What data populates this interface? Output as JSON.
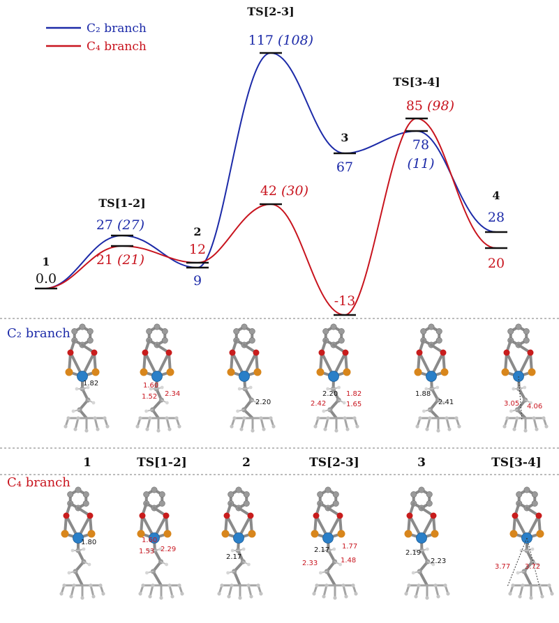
{
  "legend": {
    "c2_label": "C₂ branch",
    "c4_label": "C₄ branch"
  },
  "colors": {
    "c2": "#1c2aa8",
    "c4": "#c8141e",
    "level": "#111111"
  },
  "energy_diagram": {
    "states": [
      {
        "name": "1",
        "c2": "0.0",
        "c4": "",
        "c2_paren": "",
        "c4_paren": ""
      },
      {
        "name": "TS[1-2]",
        "c2": "27",
        "c4": "21",
        "c2_paren": "(27)",
        "c4_paren": "(21)"
      },
      {
        "name": "2",
        "c2": "9",
        "c4": "12",
        "c2_paren": "",
        "c4_paren": ""
      },
      {
        "name": "TS[2-3]",
        "c2": "117",
        "c4": "42",
        "c2_paren": "(108)",
        "c4_paren": "(30)"
      },
      {
        "name": "3",
        "c2": "67",
        "c4": "-13",
        "c2_paren": "",
        "c4_paren": ""
      },
      {
        "name": "TS[3-4]",
        "c2": "78",
        "c4": "85",
        "c2_paren": "(11)",
        "c4_paren": "(98)"
      },
      {
        "name": "4",
        "c2": "28",
        "c4": "20",
        "c2_paren": "",
        "c4_paren": ""
      }
    ],
    "c2_values": [
      0,
      27,
      9,
      117,
      67,
      78,
      28
    ],
    "c4_values": [
      0,
      21,
      12,
      42,
      -13,
      85,
      20
    ]
  },
  "structures": {
    "c2_section_label": "C₂ branch",
    "c4_section_label": "C₄ branch",
    "column_labels": [
      "1",
      "TS[1-2]",
      "2",
      "TS[2-3]",
      "3",
      "TS[3-4]"
    ],
    "c2_distances": [
      [
        "1.82"
      ],
      [
        "1.60",
        "2.34",
        "1.52"
      ],
      [
        "2.20"
      ],
      [
        "2.20",
        "1.82",
        "2.42",
        "1.65"
      ],
      [
        "1.88",
        "2.41"
      ],
      [
        "3.05",
        "4.06"
      ]
    ],
    "c4_distances": [
      [
        "1.80"
      ],
      [
        "1.60",
        "2.29",
        "1.53"
      ],
      [
        "2.17"
      ],
      [
        "2.17",
        "1.77",
        "2.33",
        "1.48"
      ],
      [
        "2.19",
        "2.23"
      ],
      [
        "3.77",
        "3.72"
      ]
    ]
  }
}
